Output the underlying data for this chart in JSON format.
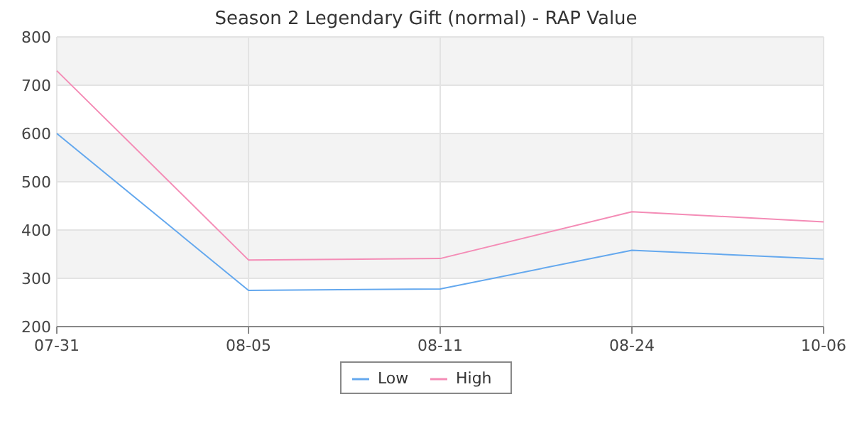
{
  "chart_data": {
    "type": "line",
    "title": "Season 2 Legendary Gift (normal) - RAP Value",
    "categories": [
      "07-31",
      "08-05",
      "08-11",
      "08-24",
      "10-06"
    ],
    "series": [
      {
        "name": "Low",
        "color": "#64a8ee",
        "values": [
          600,
          275,
          278,
          358,
          340
        ]
      },
      {
        "name": "High",
        "color": "#f48cb6",
        "values": [
          730,
          338,
          341,
          438,
          417
        ]
      }
    ],
    "ylim": [
      200,
      800
    ],
    "yticks": [
      200,
      300,
      400,
      500,
      600,
      700,
      800
    ],
    "grid": true,
    "legend": "bottom",
    "marker": "none",
    "line_style": "solid"
  }
}
